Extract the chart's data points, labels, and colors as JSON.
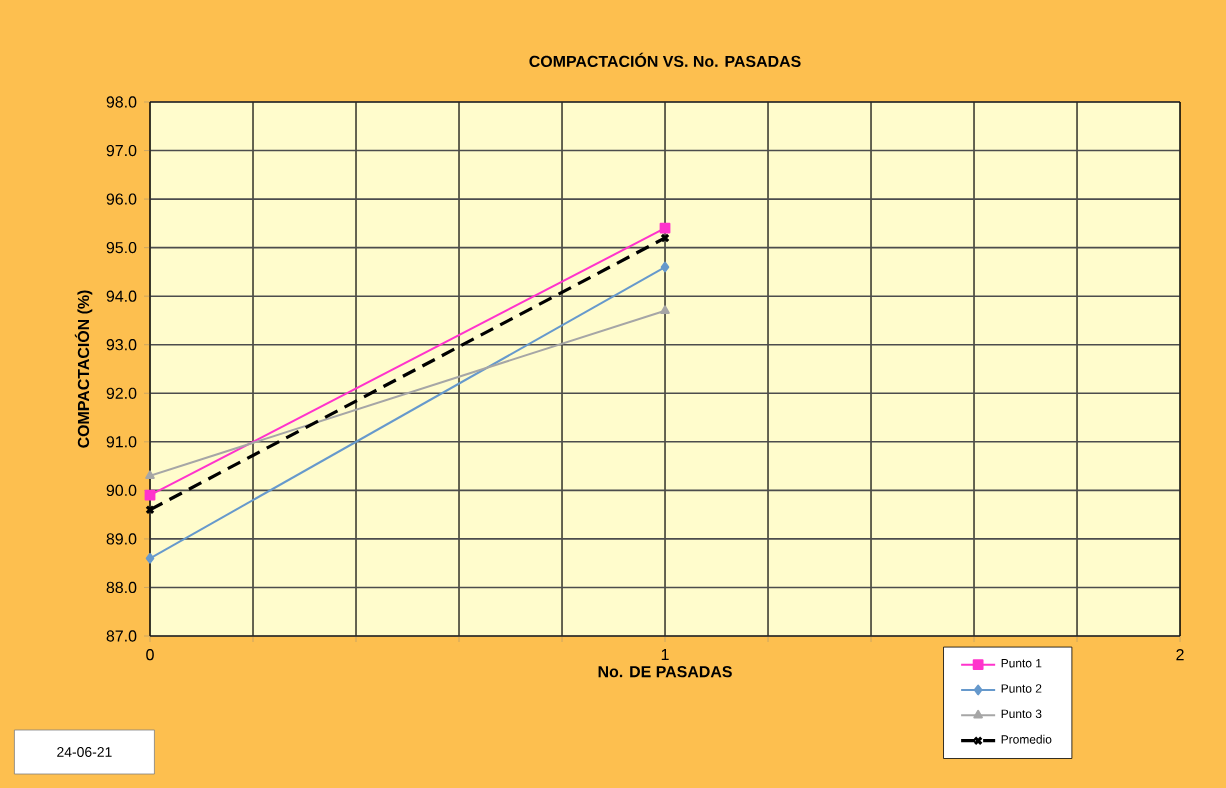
{
  "chart_data": {
    "type": "line",
    "title": "COMPACTACIÓN VS. No. PASADAS",
    "xlabel": "No. DE PASADAS",
    "ylabel": "COMPACTACIÓN (%)",
    "x": [
      0,
      1
    ],
    "series": [
      {
        "name": "Punto 1",
        "color": "#ff33cc",
        "marker": "square",
        "line_style": "solid",
        "values": [
          89.9,
          95.4
        ]
      },
      {
        "name": "Punto 2",
        "color": "#6699cc",
        "marker": "diamond",
        "line_style": "solid",
        "values": [
          88.6,
          94.6
        ]
      },
      {
        "name": "Punto 3",
        "color": "#a6a6a6",
        "marker": "triangle",
        "line_style": "solid",
        "values": [
          90.3,
          93.7
        ]
      },
      {
        "name": "Promedio",
        "color": "#000000",
        "marker": "cross",
        "line_style": "dashed",
        "values": [
          89.6,
          95.2
        ]
      }
    ],
    "xlim": [
      0,
      2
    ],
    "xticks": [
      0,
      {
        "value": 0.2,
        "label": null
      },
      {
        "value": 0.4,
        "label": null
      },
      {
        "value": 0.6,
        "label": null
      },
      {
        "value": 0.8,
        "label": null
      },
      1,
      {
        "value": 1.2,
        "label": null
      },
      {
        "value": 1.4,
        "label": null
      },
      {
        "value": 1.6,
        "label": null
      },
      {
        "value": 1.8,
        "label": null
      },
      2
    ],
    "ylim": [
      87,
      98
    ],
    "yticks": [
      {
        "value": 87,
        "label": "87.0"
      },
      {
        "value": 88,
        "label": "88.0"
      },
      {
        "value": 89,
        "label": "89.0"
      },
      {
        "value": 90,
        "label": "90.0"
      },
      {
        "value": 91,
        "label": "91.0"
      },
      {
        "value": 92,
        "label": "92.0"
      },
      {
        "value": 93,
        "label": "93.0"
      },
      {
        "value": 94,
        "label": "94.0"
      },
      {
        "value": 95,
        "label": "95.0"
      },
      {
        "value": 96,
        "label": "96.0"
      },
      {
        "value": 97,
        "label": "97.0"
      },
      {
        "value": 98,
        "label": "98.0"
      }
    ],
    "grid": true,
    "legend": "bottom right",
    "annotations": [
      "24-06-21"
    ]
  }
}
